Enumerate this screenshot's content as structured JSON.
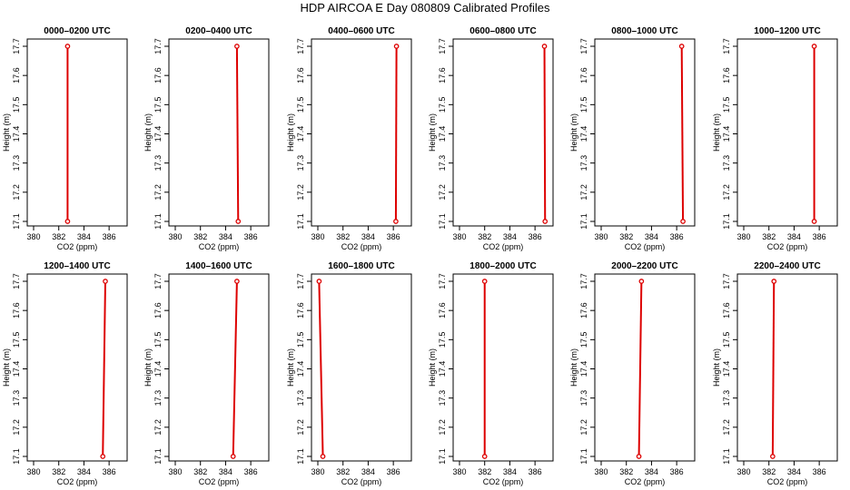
{
  "page": {
    "title": "HDP AIRCOA E  Day 080809  Calibrated Profiles"
  },
  "chart_data": [
    {
      "type": "line",
      "title": "0000–0200 UTC",
      "xlabel": "CO2 (ppm)",
      "ylabel": "Height (m)",
      "xlim": [
        380,
        387
      ],
      "ylim": [
        17.1,
        17.7
      ],
      "xticks": [
        "380",
        "382",
        "384",
        "386"
      ],
      "yticks": [
        "17.1",
        "17.2",
        "17.3",
        "17.4",
        "17.5",
        "17.6",
        "17.7"
      ],
      "x": [
        382.7,
        382.7
      ],
      "y": [
        17.1,
        17.7
      ]
    },
    {
      "type": "line",
      "title": "0200–0400 UTC",
      "xlabel": "CO2 (ppm)",
      "ylabel": "Height (m)",
      "xlim": [
        380,
        387
      ],
      "ylim": [
        17.1,
        17.7
      ],
      "xticks": [
        "380",
        "382",
        "384",
        "386"
      ],
      "yticks": [
        "17.1",
        "17.2",
        "17.3",
        "17.4",
        "17.5",
        "17.6",
        "17.7"
      ],
      "x": [
        385.0,
        384.9
      ],
      "y": [
        17.1,
        17.7
      ]
    },
    {
      "type": "line",
      "title": "0400–0600 UTC",
      "xlabel": "CO2 (ppm)",
      "ylabel": "Height (m)",
      "xlim": [
        380,
        387
      ],
      "ylim": [
        17.1,
        17.7
      ],
      "xticks": [
        "380",
        "382",
        "384",
        "386"
      ],
      "yticks": [
        "17.1",
        "17.2",
        "17.3",
        "17.4",
        "17.5",
        "17.6",
        "17.7"
      ],
      "x": [
        386.2,
        386.25
      ],
      "y": [
        17.1,
        17.7
      ]
    },
    {
      "type": "line",
      "title": "0600–0800 UTC",
      "xlabel": "CO2 (ppm)",
      "ylabel": "Height (m)",
      "xlim": [
        380,
        387
      ],
      "ylim": [
        17.1,
        17.7
      ],
      "xticks": [
        "380",
        "382",
        "384",
        "386"
      ],
      "yticks": [
        "17.1",
        "17.2",
        "17.3",
        "17.4",
        "17.5",
        "17.6",
        "17.7"
      ],
      "x": [
        386.8,
        386.75
      ],
      "y": [
        17.1,
        17.7
      ]
    },
    {
      "type": "line",
      "title": "0800–1000 UTC",
      "xlabel": "CO2 (ppm)",
      "ylabel": "Height (m)",
      "xlim": [
        380,
        387
      ],
      "ylim": [
        17.1,
        17.7
      ],
      "xticks": [
        "380",
        "382",
        "384",
        "386"
      ],
      "yticks": [
        "17.1",
        "17.2",
        "17.3",
        "17.4",
        "17.5",
        "17.6",
        "17.7"
      ],
      "x": [
        386.5,
        386.4
      ],
      "y": [
        17.1,
        17.7
      ]
    },
    {
      "type": "line",
      "title": "1000–1200 UTC",
      "xlabel": "CO2 (ppm)",
      "ylabel": "Height (m)",
      "xlim": [
        380,
        387
      ],
      "ylim": [
        17.1,
        17.7
      ],
      "xticks": [
        "380",
        "382",
        "384",
        "386"
      ],
      "yticks": [
        "17.1",
        "17.2",
        "17.3",
        "17.4",
        "17.5",
        "17.6",
        "17.7"
      ],
      "x": [
        385.6,
        385.6
      ],
      "y": [
        17.1,
        17.7
      ]
    },
    {
      "type": "line",
      "title": "1200–1400 UTC",
      "xlabel": "CO2 (ppm)",
      "ylabel": "Height (m)",
      "xlim": [
        380,
        387
      ],
      "ylim": [
        17.1,
        17.7
      ],
      "xticks": [
        "380",
        "382",
        "384",
        "386"
      ],
      "yticks": [
        "17.1",
        "17.2",
        "17.3",
        "17.4",
        "17.5",
        "17.6",
        "17.7"
      ],
      "x": [
        385.5,
        385.7
      ],
      "y": [
        17.1,
        17.7
      ]
    },
    {
      "type": "line",
      "title": "1400–1600 UTC",
      "xlabel": "CO2 (ppm)",
      "ylabel": "Height (m)",
      "xlim": [
        380,
        387
      ],
      "ylim": [
        17.1,
        17.7
      ],
      "xticks": [
        "380",
        "382",
        "384",
        "386"
      ],
      "yticks": [
        "17.1",
        "17.2",
        "17.3",
        "17.4",
        "17.5",
        "17.6",
        "17.7"
      ],
      "x": [
        384.6,
        384.9
      ],
      "y": [
        17.1,
        17.7
      ]
    },
    {
      "type": "line",
      "title": "1600–1800 UTC",
      "xlabel": "CO2 (ppm)",
      "ylabel": "Height (m)",
      "xlim": [
        380,
        387
      ],
      "ylim": [
        17.1,
        17.7
      ],
      "xticks": [
        "380",
        "382",
        "384",
        "386"
      ],
      "yticks": [
        "17.1",
        "17.2",
        "17.3",
        "17.4",
        "17.5",
        "17.6",
        "17.7"
      ],
      "x": [
        380.4,
        380.1
      ],
      "y": [
        17.1,
        17.7
      ]
    },
    {
      "type": "line",
      "title": "1800–2000 UTC",
      "xlabel": "CO2 (ppm)",
      "ylabel": "Height (m)",
      "xlim": [
        380,
        387
      ],
      "ylim": [
        17.1,
        17.7
      ],
      "xticks": [
        "380",
        "382",
        "384",
        "386"
      ],
      "yticks": [
        "17.1",
        "17.2",
        "17.3",
        "17.4",
        "17.5",
        "17.6",
        "17.7"
      ],
      "x": [
        382.0,
        382.0
      ],
      "y": [
        17.1,
        17.7
      ]
    },
    {
      "type": "line",
      "title": "2000–2200 UTC",
      "xlabel": "CO2 (ppm)",
      "ylabel": "Height (m)",
      "xlim": [
        380,
        387
      ],
      "ylim": [
        17.1,
        17.7
      ],
      "xticks": [
        "380",
        "382",
        "384",
        "386"
      ],
      "yticks": [
        "17.1",
        "17.2",
        "17.3",
        "17.4",
        "17.5",
        "17.6",
        "17.7"
      ],
      "x": [
        383.0,
        383.2
      ],
      "y": [
        17.1,
        17.7
      ]
    },
    {
      "type": "line",
      "title": "2200–2400 UTC",
      "xlabel": "CO2 (ppm)",
      "ylabel": "Height (m)",
      "xlim": [
        380,
        387
      ],
      "ylim": [
        17.1,
        17.7
      ],
      "xticks": [
        "380",
        "382",
        "384",
        "386"
      ],
      "yticks": [
        "17.1",
        "17.2",
        "17.3",
        "17.4",
        "17.5",
        "17.6",
        "17.7"
      ],
      "x": [
        382.3,
        382.4
      ],
      "y": [
        17.1,
        17.7
      ]
    }
  ],
  "colors": {
    "profile_line": "#dd0000",
    "axis": "#000000"
  }
}
